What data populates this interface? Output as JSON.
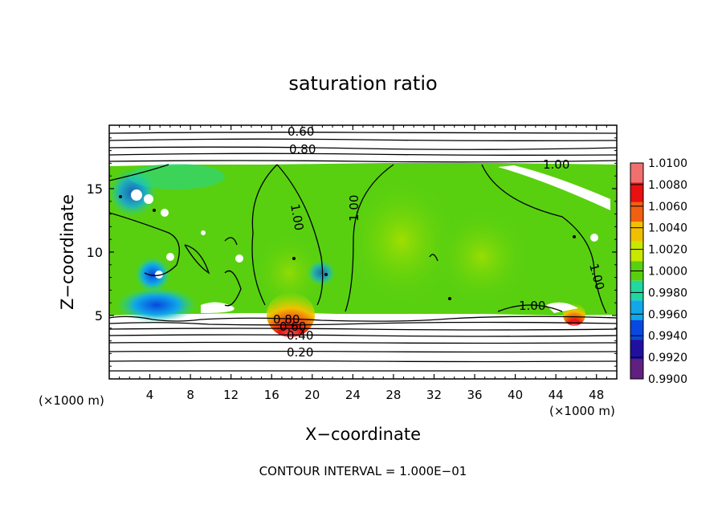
{
  "chart_data": {
    "type": "heatmap",
    "title": "saturation ratio",
    "xlabel": "X−coordinate",
    "ylabel": "Z−coordinate",
    "x_unit": "(×1000 m)",
    "y_unit": "(×1000 m)",
    "xlim": [
      0,
      50
    ],
    "ylim": [
      0,
      20
    ],
    "x_ticks": [
      "4",
      "8",
      "12",
      "16",
      "20",
      "24",
      "28",
      "32",
      "36",
      "40",
      "44",
      "48"
    ],
    "y_ticks": [
      "5",
      "10",
      "15"
    ],
    "contour_interval_note": "CONTOUR INTERVAL = 1.000E−01",
    "contour_labels": [
      "0.60",
      "0.80",
      "1.00",
      "1.00",
      "1.00",
      "1.00",
      "1.00",
      "1.00",
      "0.80",
      "0.60",
      "0.40",
      "0.20"
    ],
    "colorbar": {
      "labels": [
        "1.0100",
        "1.0080",
        "1.0060",
        "1.0040",
        "1.0020",
        "1.0000",
        "0.9980",
        "0.9960",
        "0.9940",
        "0.9920",
        "0.9900"
      ],
      "colors": [
        "#f07070",
        "#e81010",
        "#f06010",
        "#f0c000",
        "#c8e800",
        "#58d010",
        "#20d8a0",
        "#10a8e8",
        "#0848e0",
        "#2010a0",
        "#602080"
      ]
    },
    "field": {
      "dominant_value_range": [
        1.0,
        1.002
      ],
      "supersaturated_band_z": [
        5,
        17
      ]
    }
  }
}
